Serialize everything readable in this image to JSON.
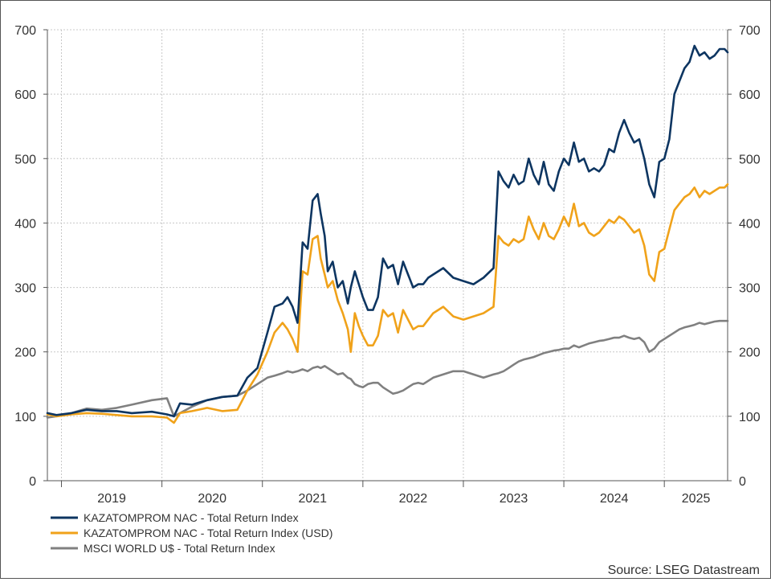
{
  "chart_data": {
    "type": "line",
    "title": "",
    "xlabel": "",
    "ylabel": "",
    "ylim": [
      0,
      700
    ],
    "y_ticks": [
      0,
      100,
      200,
      300,
      400,
      500,
      600,
      700
    ],
    "x_range": [
      2018.86,
      2025.63
    ],
    "x_tick_labels": [
      "2019",
      "2020",
      "2021",
      "2022",
      "2023",
      "2024",
      "2025"
    ],
    "grid": true,
    "dual_y_axis": true,
    "legend_position": "bottom-left",
    "source": "Source: LSEG Datastream",
    "series": [
      {
        "name": "KAZATOMPROM NAC - Total Return Index",
        "color": "#0d3561",
        "x": [
          2018.86,
          2018.95,
          2019.1,
          2019.25,
          2019.4,
          2019.55,
          2019.7,
          2019.9,
          2020.05,
          2020.12,
          2020.18,
          2020.3,
          2020.45,
          2020.6,
          2020.75,
          2020.85,
          2020.95,
          2021.05,
          2021.12,
          2021.2,
          2021.25,
          2021.3,
          2021.35,
          2021.4,
          2021.45,
          2021.5,
          2021.55,
          2021.58,
          2021.62,
          2021.65,
          2021.7,
          2021.75,
          2021.8,
          2021.85,
          2021.88,
          2021.92,
          2021.96,
          2022.0,
          2022.05,
          2022.1,
          2022.15,
          2022.2,
          2022.25,
          2022.3,
          2022.35,
          2022.4,
          2022.45,
          2022.5,
          2022.55,
          2022.6,
          2022.65,
          2022.7,
          2022.8,
          2022.9,
          2023.0,
          2023.1,
          2023.2,
          2023.3,
          2023.35,
          2023.4,
          2023.45,
          2023.5,
          2023.55,
          2023.6,
          2023.65,
          2023.7,
          2023.75,
          2023.8,
          2023.85,
          2023.9,
          2023.95,
          2024.0,
          2024.05,
          2024.1,
          2024.15,
          2024.2,
          2024.25,
          2024.3,
          2024.35,
          2024.4,
          2024.45,
          2024.5,
          2024.55,
          2024.6,
          2024.65,
          2024.7,
          2024.75,
          2024.8,
          2024.85,
          2024.9,
          2024.95,
          2025.0,
          2025.05,
          2025.1,
          2025.15,
          2025.2,
          2025.25,
          2025.3,
          2025.35,
          2025.4,
          2025.45,
          2025.5,
          2025.55,
          2025.6,
          2025.63
        ],
        "values": [
          105,
          102,
          105,
          110,
          108,
          108,
          105,
          107,
          103,
          100,
          120,
          118,
          125,
          130,
          132,
          160,
          175,
          230,
          270,
          275,
          285,
          270,
          245,
          370,
          360,
          435,
          445,
          415,
          380,
          325,
          340,
          300,
          310,
          275,
          300,
          325,
          305,
          285,
          265,
          265,
          285,
          345,
          330,
          335,
          305,
          340,
          320,
          300,
          305,
          305,
          315,
          320,
          330,
          315,
          310,
          305,
          315,
          330,
          480,
          465,
          455,
          475,
          460,
          465,
          500,
          475,
          460,
          495,
          460,
          450,
          480,
          500,
          490,
          525,
          495,
          500,
          480,
          485,
          480,
          490,
          515,
          510,
          540,
          560,
          540,
          525,
          530,
          500,
          460,
          440,
          495,
          500,
          530,
          600,
          620,
          640,
          650,
          675,
          660,
          665,
          655,
          660,
          670,
          670,
          665
        ]
      },
      {
        "name": "KAZATOMPROM NAC - Total Return Index (USD)",
        "color": "#f0a21a",
        "x": [
          2018.86,
          2018.95,
          2019.1,
          2019.25,
          2019.4,
          2019.55,
          2019.7,
          2019.9,
          2020.05,
          2020.12,
          2020.18,
          2020.3,
          2020.45,
          2020.6,
          2020.75,
          2020.85,
          2020.95,
          2021.05,
          2021.12,
          2021.2,
          2021.25,
          2021.3,
          2021.35,
          2021.4,
          2021.45,
          2021.5,
          2021.55,
          2021.58,
          2021.62,
          2021.65,
          2021.7,
          2021.75,
          2021.8,
          2021.85,
          2021.88,
          2021.92,
          2021.96,
          2022.0,
          2022.05,
          2022.1,
          2022.15,
          2022.2,
          2022.25,
          2022.3,
          2022.35,
          2022.4,
          2022.45,
          2022.5,
          2022.55,
          2022.6,
          2022.65,
          2022.7,
          2022.8,
          2022.9,
          2023.0,
          2023.1,
          2023.2,
          2023.3,
          2023.35,
          2023.4,
          2023.45,
          2023.5,
          2023.55,
          2023.6,
          2023.65,
          2023.7,
          2023.75,
          2023.8,
          2023.85,
          2023.9,
          2023.95,
          2024.0,
          2024.05,
          2024.1,
          2024.15,
          2024.2,
          2024.25,
          2024.3,
          2024.35,
          2024.4,
          2024.45,
          2024.5,
          2024.55,
          2024.6,
          2024.65,
          2024.7,
          2024.75,
          2024.8,
          2024.85,
          2024.9,
          2024.95,
          2025.0,
          2025.05,
          2025.1,
          2025.15,
          2025.2,
          2025.25,
          2025.3,
          2025.35,
          2025.4,
          2025.45,
          2025.5,
          2025.55,
          2025.6,
          2025.63
        ],
        "values": [
          103,
          100,
          103,
          105,
          104,
          102,
          100,
          100,
          98,
          90,
          105,
          108,
          113,
          108,
          110,
          140,
          165,
          200,
          230,
          245,
          235,
          220,
          200,
          325,
          320,
          375,
          380,
          345,
          320,
          300,
          310,
          280,
          260,
          235,
          200,
          260,
          240,
          225,
          210,
          210,
          225,
          265,
          255,
          260,
          230,
          265,
          250,
          235,
          240,
          240,
          250,
          260,
          270,
          255,
          250,
          255,
          260,
          270,
          380,
          370,
          365,
          375,
          370,
          375,
          410,
          390,
          375,
          400,
          380,
          375,
          390,
          410,
          395,
          430,
          395,
          400,
          385,
          380,
          385,
          395,
          405,
          400,
          410,
          405,
          395,
          385,
          390,
          365,
          320,
          310,
          355,
          360,
          390,
          420,
          430,
          440,
          445,
          455,
          440,
          450,
          445,
          450,
          455,
          455,
          460
        ]
      },
      {
        "name": "MSCI WORLD U$ - Total Return Index",
        "color": "#808080",
        "x": [
          2018.86,
          2018.95,
          2019.1,
          2019.25,
          2019.4,
          2019.55,
          2019.7,
          2019.9,
          2020.05,
          2020.12,
          2020.18,
          2020.3,
          2020.45,
          2020.6,
          2020.75,
          2020.85,
          2020.95,
          2021.05,
          2021.12,
          2021.2,
          2021.25,
          2021.3,
          2021.35,
          2021.4,
          2021.45,
          2021.5,
          2021.55,
          2021.58,
          2021.62,
          2021.65,
          2021.7,
          2021.75,
          2021.8,
          2021.85,
          2021.88,
          2021.92,
          2021.96,
          2022.0,
          2022.05,
          2022.1,
          2022.15,
          2022.2,
          2022.25,
          2022.3,
          2022.35,
          2022.4,
          2022.45,
          2022.5,
          2022.55,
          2022.6,
          2022.65,
          2022.7,
          2022.8,
          2022.9,
          2023.0,
          2023.1,
          2023.2,
          2023.3,
          2023.35,
          2023.4,
          2023.45,
          2023.5,
          2023.55,
          2023.6,
          2023.65,
          2023.7,
          2023.75,
          2023.8,
          2023.85,
          2023.9,
          2023.95,
          2024.0,
          2024.05,
          2024.1,
          2024.15,
          2024.2,
          2024.25,
          2024.3,
          2024.35,
          2024.4,
          2024.45,
          2024.5,
          2024.55,
          2024.6,
          2024.65,
          2024.7,
          2024.75,
          2024.8,
          2024.85,
          2024.9,
          2024.95,
          2025.0,
          2025.05,
          2025.1,
          2025.15,
          2025.2,
          2025.25,
          2025.3,
          2025.35,
          2025.4,
          2025.45,
          2025.5,
          2025.55,
          2025.6,
          2025.63
        ],
        "values": [
          98,
          100,
          105,
          112,
          110,
          113,
          118,
          125,
          128,
          100,
          105,
          115,
          125,
          130,
          132,
          140,
          150,
          160,
          163,
          167,
          170,
          168,
          170,
          173,
          170,
          175,
          177,
          175,
          178,
          175,
          170,
          165,
          167,
          160,
          158,
          150,
          147,
          145,
          150,
          152,
          152,
          145,
          140,
          135,
          137,
          140,
          145,
          150,
          152,
          150,
          155,
          160,
          165,
          170,
          170,
          165,
          160,
          165,
          167,
          170,
          175,
          180,
          185,
          188,
          190,
          192,
          195,
          198,
          200,
          202,
          203,
          205,
          205,
          210,
          207,
          210,
          213,
          215,
          217,
          218,
          220,
          222,
          222,
          225,
          222,
          220,
          222,
          215,
          200,
          205,
          215,
          220,
          225,
          230,
          235,
          238,
          240,
          242,
          245,
          243,
          245,
          247,
          248,
          248,
          248
        ]
      }
    ]
  }
}
